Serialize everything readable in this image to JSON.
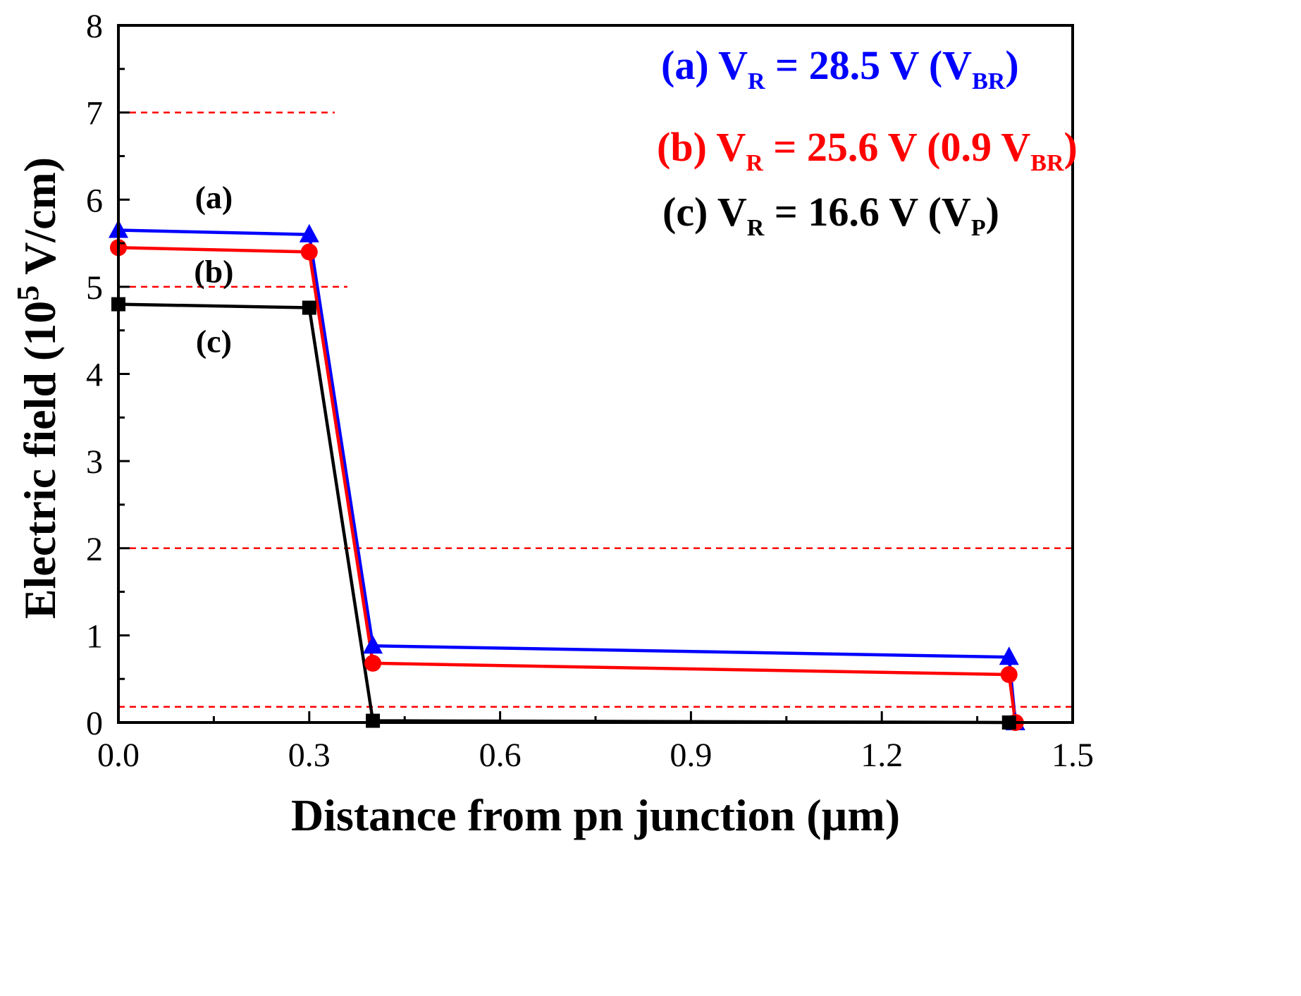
{
  "chart_data": {
    "type": "line",
    "title": "",
    "xlabel": "Distance from pn junction (µm)",
    "ylabel_main": "Electric field (10",
    "ylabel_sup": "5",
    "ylabel_end": " V/cm)",
    "xlim": [
      0,
      1.5
    ],
    "ylim": [
      0,
      8
    ],
    "x_ticks": [
      "0.0",
      "0.3",
      "0.6",
      "0.9",
      "1.2",
      "1.5"
    ],
    "x_tick_values": [
      0,
      0.3,
      0.6,
      0.9,
      1.2,
      1.5
    ],
    "y_ticks": [
      "0",
      "1",
      "2",
      "3",
      "4",
      "5",
      "6",
      "7",
      "8"
    ],
    "y_tick_values": [
      0,
      1,
      2,
      3,
      4,
      5,
      6,
      7,
      8
    ],
    "grid": false,
    "reference_lines": [
      {
        "y": 7.0,
        "x_start": 0,
        "x_end": 0.34,
        "color": "#ff0000",
        "style": "dashed"
      },
      {
        "y": 5.0,
        "x_start": 0,
        "x_end": 0.36,
        "color": "#ff0000",
        "style": "dashed"
      },
      {
        "y": 2.0,
        "x_start": 0,
        "x_end": 1.5,
        "color": "#ff0000",
        "style": "dashed"
      },
      {
        "y": 0.18,
        "x_start": 0,
        "x_end": 1.5,
        "color": "#ff0000",
        "style": "dashed"
      }
    ],
    "series": [
      {
        "name": "(a)",
        "color": "#0000ff",
        "marker": "triangle",
        "x": [
          0.0,
          0.3,
          0.4,
          1.4,
          1.41
        ],
        "y": [
          5.65,
          5.6,
          0.88,
          0.75,
          0.0
        ],
        "legend_main": "(a) V",
        "legend_sub": "R",
        "legend_mid": " = 28.5 V (V",
        "legend_sub2": "BR",
        "legend_end": ")",
        "tag_x": 0.15,
        "tag_y": 5.9
      },
      {
        "name": "(b)",
        "color": "#ff0000",
        "marker": "circle",
        "x": [
          0.0,
          0.3,
          0.4,
          1.4,
          1.41
        ],
        "y": [
          5.45,
          5.4,
          0.68,
          0.55,
          0.0
        ],
        "legend_main": "(b) V",
        "legend_sub": "R",
        "legend_mid": " = 25.6 V (0.9 V",
        "legend_sub2": "BR",
        "legend_end": ")",
        "tag_x": 0.15,
        "tag_y": 5.05
      },
      {
        "name": "(c)",
        "color": "#000000",
        "marker": "square",
        "x": [
          0.0,
          0.3,
          0.4,
          1.4
        ],
        "y": [
          4.8,
          4.76,
          0.02,
          0.0
        ],
        "legend_main": "(c) V",
        "legend_sub": "R",
        "legend_mid": " = 16.6 V (V",
        "legend_sub2": "P",
        "legend_end": ")",
        "tag_x": 0.15,
        "tag_y": 4.25
      }
    ]
  }
}
